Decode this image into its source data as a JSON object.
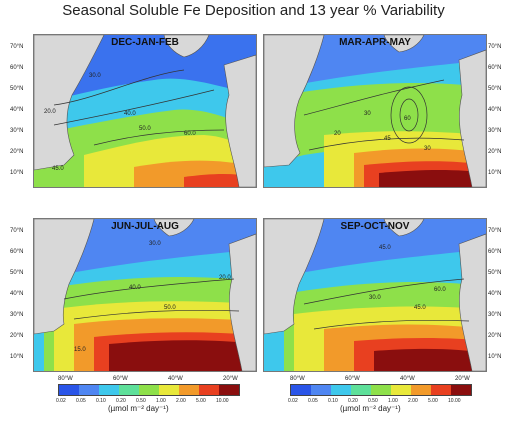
{
  "title": "Seasonal Soluble Fe Deposition and 13 year % Variability",
  "panels": [
    {
      "season": "DEC-JAN-FEB",
      "contours": [
        "30.0",
        "20.0",
        "40.0",
        "50.0",
        "60.0",
        "50.0",
        "45.0"
      ]
    },
    {
      "season": "MAR-APR-MAY",
      "contours": [
        "20",
        "30",
        "45",
        "60",
        "30",
        "45"
      ]
    },
    {
      "season": "JUN-JUL-AUG",
      "contours": [
        "30.0",
        "40.0",
        "50.0",
        "30.0",
        "20.0",
        "15.0"
      ]
    },
    {
      "season": "SEP-OCT-NOV",
      "contours": [
        "45.0",
        "30.0",
        "45.0",
        "60.0",
        "30.0"
      ]
    }
  ],
  "lat_labels": [
    "70°N",
    "60°N",
    "50°N",
    "40°N",
    "30°N",
    "20°N",
    "10°N"
  ],
  "lon_labels": [
    "80°W",
    "60°W",
    "40°W",
    "20°W"
  ],
  "colorbar": {
    "ticks": [
      "0.02",
      "0.05",
      "0.10",
      "0.20",
      "0.50",
      "1.00",
      "2.00",
      "5.00",
      "10.00"
    ],
    "colors": [
      "#2a55e8",
      "#4f86f2",
      "#3ec8ec",
      "#5ee09a",
      "#8ee04a",
      "#e8e83a",
      "#f29a2a",
      "#e84020",
      "#8a0e0e"
    ],
    "units": "(µmol m⁻² day⁻¹)"
  }
}
